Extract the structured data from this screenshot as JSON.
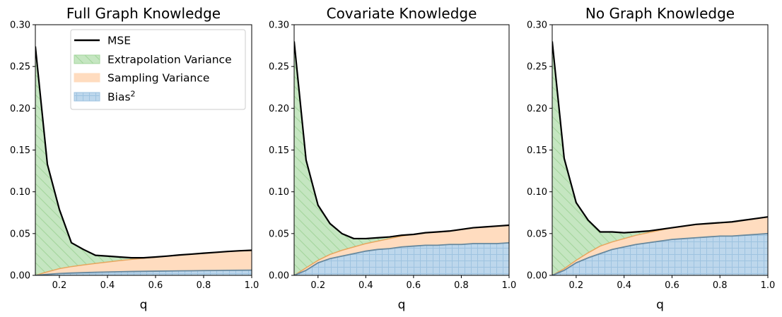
{
  "chart_data": [
    {
      "type": "area",
      "title": "Full Graph Knowledge",
      "xlabel": "q",
      "ylabel": "",
      "xlim": [
        0.1,
        1.0
      ],
      "ylim": [
        0,
        0.3
      ],
      "xticks": [
        0.2,
        0.4,
        0.6,
        0.8,
        1.0
      ],
      "yticks": [
        0.0,
        0.05,
        0.1,
        0.15,
        0.2,
        0.25,
        0.3
      ],
      "legend": "top-right",
      "x": [
        0.1,
        0.15,
        0.2,
        0.25,
        0.3,
        0.35,
        0.4,
        0.45,
        0.5,
        0.55,
        0.6,
        0.65,
        0.7,
        0.75,
        0.8,
        0.85,
        0.9,
        0.95,
        1.0
      ],
      "series": [
        {
          "name": "Bias$^2$",
          "values": [
            0.0,
            0.0012,
            0.0022,
            0.0028,
            0.0033,
            0.0037,
            0.004,
            0.0043,
            0.0046,
            0.0048,
            0.005,
            0.0052,
            0.0054,
            0.0055,
            0.0057,
            0.0058,
            0.006,
            0.0061,
            0.0062
          ]
        },
        {
          "name": "Sampling Variance",
          "values": [
            0.0,
            0.003,
            0.0058,
            0.0077,
            0.0092,
            0.0106,
            0.012,
            0.0133,
            0.0145,
            0.0157,
            0.0168,
            0.0179,
            0.019,
            0.0199,
            0.0208,
            0.0217,
            0.0226,
            0.0233,
            0.0238
          ]
        },
        {
          "name": "Extrapolation Variance",
          "values": [
            0.274,
            0.1288,
            0.0708,
            0.0285,
            0.0185,
            0.0097,
            0.007,
            0.0044,
            0.0019,
            0.0005,
            0.0002,
            0.0,
            0.0,
            0.0,
            0.0,
            0.0,
            0.0,
            0.0,
            0.0
          ]
        },
        {
          "name": "MSE",
          "values": [
            0.274,
            0.133,
            0.0788,
            0.039,
            0.031,
            0.024,
            0.023,
            0.022,
            0.021,
            0.021,
            0.022,
            0.0231,
            0.0244,
            0.0254,
            0.0265,
            0.0275,
            0.0286,
            0.0294,
            0.03
          ]
        }
      ]
    },
    {
      "type": "area",
      "title": "Covariate Knowledge",
      "xlabel": "q",
      "ylabel": "",
      "xlim": [
        0.1,
        1.0
      ],
      "ylim": [
        0,
        0.3
      ],
      "xticks": [
        0.2,
        0.4,
        0.6,
        0.8,
        1.0
      ],
      "yticks": [
        0.0,
        0.05,
        0.1,
        0.15,
        0.2,
        0.25,
        0.3
      ],
      "legend": "none",
      "x": [
        0.1,
        0.15,
        0.2,
        0.25,
        0.3,
        0.35,
        0.4,
        0.45,
        0.5,
        0.55,
        0.6,
        0.65,
        0.7,
        0.75,
        0.8,
        0.85,
        0.9,
        0.95,
        1.0
      ],
      "series": [
        {
          "name": "Bias$^2$",
          "values": [
            0.0,
            0.006,
            0.015,
            0.02,
            0.023,
            0.026,
            0.029,
            0.031,
            0.032,
            0.034,
            0.035,
            0.036,
            0.036,
            0.037,
            0.037,
            0.038,
            0.038,
            0.038,
            0.039
          ]
        },
        {
          "name": "Sampling Variance",
          "values": [
            0.0,
            0.003,
            0.003,
            0.005,
            0.007,
            0.008,
            0.009,
            0.01,
            0.012,
            0.013,
            0.014,
            0.015,
            0.016,
            0.016,
            0.018,
            0.019,
            0.02,
            0.021,
            0.021
          ]
        },
        {
          "name": "Extrapolation Variance",
          "values": [
            0.28,
            0.129,
            0.066,
            0.037,
            0.02,
            0.01,
            0.006,
            0.004,
            0.002,
            0.001,
            0.0,
            0.0,
            0.0,
            0.0,
            0.0,
            0.0,
            0.0,
            0.0,
            0.0
          ]
        },
        {
          "name": "MSE",
          "values": [
            0.28,
            0.138,
            0.084,
            0.062,
            0.05,
            0.044,
            0.044,
            0.045,
            0.046,
            0.048,
            0.049,
            0.051,
            0.052,
            0.053,
            0.055,
            0.057,
            0.058,
            0.059,
            0.06
          ]
        }
      ]
    },
    {
      "type": "area",
      "title": "No Graph Knowledge",
      "xlabel": "q",
      "ylabel": "",
      "xlim": [
        0.1,
        1.0
      ],
      "ylim": [
        0,
        0.3
      ],
      "xticks": [
        0.2,
        0.4,
        0.6,
        0.8,
        1.0
      ],
      "yticks": [
        0.0,
        0.05,
        0.1,
        0.15,
        0.2,
        0.25,
        0.3
      ],
      "legend": "none",
      "x": [
        0.1,
        0.15,
        0.2,
        0.25,
        0.3,
        0.35,
        0.4,
        0.45,
        0.5,
        0.55,
        0.6,
        0.65,
        0.7,
        0.75,
        0.8,
        0.85,
        0.9,
        0.95,
        1.0
      ],
      "series": [
        {
          "name": "Bias$^2$",
          "values": [
            0.0,
            0.006,
            0.015,
            0.021,
            0.026,
            0.031,
            0.034,
            0.037,
            0.039,
            0.041,
            0.043,
            0.044,
            0.045,
            0.046,
            0.047,
            0.047,
            0.048,
            0.049,
            0.05
          ]
        },
        {
          "name": "Sampling Variance",
          "values": [
            0.0,
            0.002,
            0.003,
            0.006,
            0.009,
            0.009,
            0.01,
            0.011,
            0.012,
            0.013,
            0.014,
            0.015,
            0.016,
            0.016,
            0.016,
            0.017,
            0.018,
            0.019,
            0.02
          ]
        },
        {
          "name": "Extrapolation Variance",
          "values": [
            0.28,
            0.132,
            0.069,
            0.039,
            0.017,
            0.012,
            0.007,
            0.004,
            0.002,
            0.001,
            0.0,
            0.0,
            0.0,
            0.0,
            0.0,
            0.0,
            0.0,
            0.0,
            0.0
          ]
        },
        {
          "name": "MSE",
          "values": [
            0.28,
            0.14,
            0.087,
            0.066,
            0.052,
            0.052,
            0.051,
            0.052,
            0.053,
            0.055,
            0.057,
            0.059,
            0.061,
            0.062,
            0.063,
            0.064,
            0.066,
            0.068,
            0.07
          ]
        }
      ]
    }
  ],
  "legend_entries": [
    {
      "key": "MSE",
      "text": "MSE"
    },
    {
      "key": "extrapolation",
      "text": "Extrapolation Variance"
    },
    {
      "key": "sampling",
      "text": "Sampling Variance"
    },
    {
      "key": "bias",
      "text": "Bias",
      "superscript": "2"
    }
  ],
  "colors": {
    "mse": "#000000",
    "extrapolation_fill": "#c5e6c1",
    "extrapolation_hatch": "#a3d69c",
    "sampling_fill": "#ffdcbf",
    "sampling_edge": "#e6a65e",
    "bias_fill": "#bdd7ec",
    "bias_hatch": "#9ec3e0",
    "bias_edge": "#66889e"
  }
}
